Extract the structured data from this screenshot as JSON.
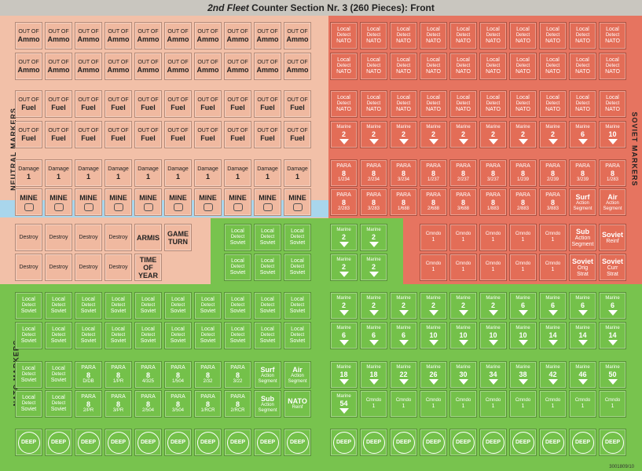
{
  "title": {
    "italic": "2nd Fleet",
    "rest": " Counter Section Nr. 3 (260 Pieces): Front"
  },
  "side_labels": {
    "neutral": "NEUTRAL MARKERS",
    "soviet": "SOVIET MARKERS",
    "nato": "NATO MARKERS"
  },
  "footer_code": "3001809/10",
  "peach_rows": [
    {
      "type": "ammo",
      "label1": "OUT OF",
      "label2": "Ammo",
      "count": 10
    },
    {
      "type": "ammo",
      "label1": "OUT OF",
      "label2": "Ammo",
      "count": 10
    },
    {
      "type": "fuel",
      "label1": "OUT OF",
      "label2": "Fuel",
      "count": 10
    },
    {
      "type": "fuel",
      "label1": "OUT OF",
      "label2": "Fuel",
      "count": 10
    },
    {
      "type": "damage",
      "label1": "Damage",
      "label2": "1",
      "count": 10
    },
    {
      "type": "mine",
      "label1": "MINE",
      "label2": "",
      "count": 10
    }
  ],
  "destroy_row1": [
    "Destroy",
    "Destroy",
    "Destroy",
    "Destroy",
    "ARMIS",
    "GAME TURN"
  ],
  "destroy_row2": [
    "Destroy",
    "Destroy",
    "Destroy",
    "Destroy",
    "TIME OF YEAR"
  ],
  "red_local": {
    "l1": "Local",
    "l2": "Detect",
    "l3": "NATO"
  },
  "red_marine_row": [
    "2",
    "2",
    "2",
    "2",
    "2",
    "2",
    "2",
    "2",
    "6",
    "10"
  ],
  "red_para_row1": [
    {
      "v": "8",
      "s": "1/234"
    },
    {
      "v": "8",
      "s": "2/234"
    },
    {
      "v": "8",
      "s": "3/234"
    },
    {
      "v": "8",
      "s": "1/237"
    },
    {
      "v": "8",
      "s": "2/237"
    },
    {
      "v": "8",
      "s": "3/237"
    },
    {
      "v": "8",
      "s": "1/239"
    },
    {
      "v": "8",
      "s": "2/239"
    },
    {
      "v": "8",
      "s": "3/239"
    },
    {
      "v": "8",
      "s": "1/283"
    }
  ],
  "red_para_row2": [
    {
      "v": "8",
      "s": "2/283"
    },
    {
      "v": "8",
      "s": "3/283"
    },
    {
      "v": "8",
      "s": "1/688"
    },
    {
      "v": "8",
      "s": "2/688"
    },
    {
      "v": "8",
      "s": "3/688"
    },
    {
      "v": "8",
      "s": "1/883"
    },
    {
      "v": "8",
      "s": "2/883"
    },
    {
      "v": "8",
      "s": "3/883"
    }
  ],
  "red_surf": {
    "l1": "Surf",
    "l2": "Action",
    "l3": "Segment"
  },
  "red_air": {
    "l1": "Air",
    "l2": "Action",
    "l3": "Segment"
  },
  "green_local_soviet": {
    "l1": "Local",
    "l2": "Detect",
    "l3": "Soviet"
  },
  "mid_marine": [
    "2",
    "2",
    "2",
    "2"
  ],
  "red_cmndo_row": [
    "1",
    "1",
    "1",
    "1",
    "1",
    "1"
  ],
  "red_cmndo_row2": [
    "1",
    "1",
    "1",
    "1",
    "1"
  ],
  "red_sub": {
    "l1": "Sub",
    "l2": "Action",
    "l3": "Segment"
  },
  "red_soviet_reinf": {
    "l1": "Soviet",
    "l2": "Reinf"
  },
  "red_orig_strat": {
    "l1": "Soviet",
    "l2": "Orig",
    "l3": "Strat"
  },
  "red_curr_strat": {
    "l1": "Soviet",
    "l2": "Curr",
    "l3": "Strat"
  },
  "nato_marine_row1": [
    "2",
    "2",
    "2",
    "2",
    "2",
    "2",
    "6",
    "6",
    "6",
    "6"
  ],
  "nato_marine_row2": [
    "6",
    "6",
    "6",
    "10",
    "10",
    "10",
    "10",
    "14",
    "14",
    "14"
  ],
  "nato_marine_row3": [
    "18",
    "18",
    "22",
    "26",
    "30",
    "34",
    "38",
    "42",
    "46",
    "50"
  ],
  "nato_marine_54": "54",
  "nato_cmndo_row": [
    "1",
    "1",
    "1",
    "1",
    "1",
    "1",
    "1",
    "1",
    "1"
  ],
  "nato_para_row1": [
    {
      "v": "8",
      "s": "D/DB"
    },
    {
      "v": "8",
      "s": "1/PR"
    },
    {
      "v": "8",
      "s": "4/325"
    },
    {
      "v": "8",
      "s": "1/504"
    },
    {
      "v": "8",
      "s": "2/32"
    },
    {
      "v": "8",
      "s": "3/22"
    }
  ],
  "nato_para_row2": [
    {
      "v": "8",
      "s": "2/PR"
    },
    {
      "v": "8",
      "s": "3/PR"
    },
    {
      "v": "8",
      "s": "2/504"
    },
    {
      "v": "8",
      "s": "3/504"
    },
    {
      "v": "8",
      "s": "1/RCR"
    },
    {
      "v": "8",
      "s": "2/RCR"
    }
  ],
  "nato_surf": {
    "l1": "Surf",
    "l2": "Action",
    "l3": "Segment"
  },
  "nato_air": {
    "l1": "Air",
    "l2": "Action",
    "l3": "Segment"
  },
  "nato_sub": {
    "l1": "Sub",
    "l2": "Action",
    "l3": "Segment"
  },
  "nato_reinf": {
    "l1": "NATO",
    "l2": "Reinf"
  },
  "deep_label": "DEEP",
  "labels": {
    "marine": "Marine",
    "para": "PARA",
    "cmndo": "Cmndo"
  }
}
